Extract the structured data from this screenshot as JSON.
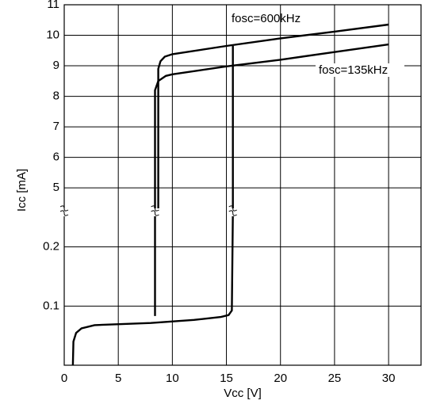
{
  "chart_data": {
    "type": "line",
    "xlabel": "Vcc [V]",
    "ylabel": "Icc [mA]",
    "xlim": [
      0,
      33
    ],
    "xticks": [
      0,
      5,
      10,
      15,
      20,
      25,
      30
    ],
    "y_segments": [
      {
        "scale": "log",
        "ylim": [
          0.05,
          0.3
        ]
      },
      {
        "scale": "linear",
        "ylim": [
          4.2,
          11
        ]
      }
    ],
    "yticks": [
      0.1,
      0.2,
      5,
      6,
      7,
      8,
      9,
      10,
      11
    ],
    "grid": true,
    "series": [
      {
        "name": "fosc=600kHz",
        "color": "#000000",
        "x": [
          8.7,
          8.7,
          8.9,
          9.3,
          10,
          15,
          20,
          25,
          30
        ],
        "values": [
          4.2,
          8.9,
          9.15,
          9.3,
          9.38,
          9.65,
          9.9,
          10.12,
          10.35
        ]
      },
      {
        "name": "fosc=135kHz",
        "color": "#000000",
        "x": [
          8.4,
          8.4,
          8.7,
          9.4,
          10,
          15,
          20,
          25,
          30
        ],
        "values": [
          4.2,
          8.2,
          8.5,
          8.67,
          8.72,
          8.98,
          9.2,
          9.45,
          9.7
        ]
      },
      {
        "color": "#000000",
        "x": [
          0.8,
          0.85,
          1.1,
          1.6,
          2.8,
          8,
          12,
          14.5,
          15.2,
          15.5,
          15.6,
          15.6,
          15.6,
          15.6
        ],
        "values": [
          0.05,
          0.066,
          0.073,
          0.077,
          0.08,
          0.082,
          0.085,
          0.088,
          0.09,
          0.095,
          0.3,
          null,
          4.2,
          9.65
        ]
      },
      {
        "color": "#000000",
        "x": [
          8.4,
          8.4
        ],
        "values": [
          0.089,
          0.3
        ]
      }
    ]
  }
}
